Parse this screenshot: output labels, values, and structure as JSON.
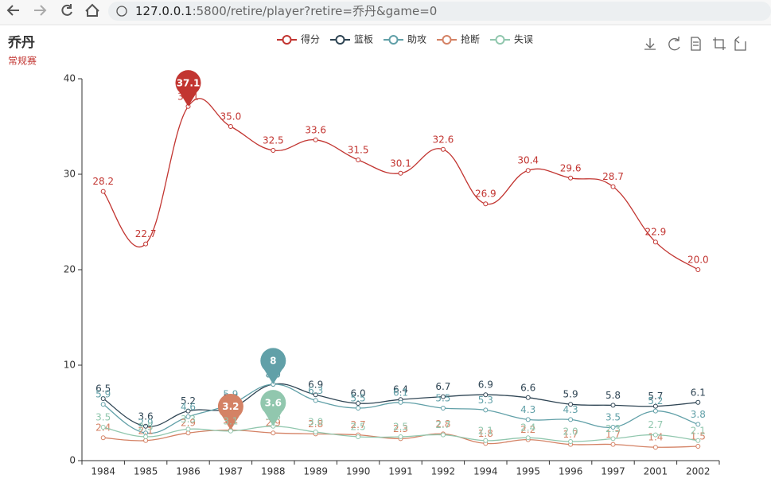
{
  "browser": {
    "url_host": "127.0.0.1",
    "url_rest": ":5800/retire/player?retire=乔丹&game=0"
  },
  "chart_data": {
    "type": "line",
    "title": "乔丹",
    "subtitle": "常规赛",
    "categories": [
      "1984",
      "1985",
      "1986",
      "1987",
      "1988",
      "1989",
      "1990",
      "1991",
      "1992",
      "1994",
      "1995",
      "1996",
      "1997",
      "2001",
      "2002"
    ],
    "ylim": [
      0,
      40
    ],
    "yticks": [
      0,
      10,
      20,
      30,
      40
    ],
    "smooth": true,
    "series": [
      {
        "name": "得分",
        "color": "#c23531",
        "values": [
          28.2,
          22.7,
          37.1,
          35.0,
          32.5,
          33.6,
          31.5,
          30.1,
          32.6,
          26.9,
          30.4,
          29.6,
          28.7,
          22.9,
          20.0
        ],
        "value_labels": [
          "28.2",
          "22.7",
          "37.1",
          "35.0",
          "32.5",
          "33.6",
          "31.5",
          "30.1",
          "32.6",
          "26.9",
          "30.4",
          "29.6",
          "28.7",
          "22.9",
          "20.0"
        ],
        "max_label": "37.1"
      },
      {
        "name": "篮板",
        "color": "#2f4554",
        "values": [
          6.5,
          3.6,
          5.2,
          5.5,
          8.0,
          6.9,
          6.0,
          6.4,
          6.7,
          6.9,
          6.6,
          5.9,
          5.8,
          5.7,
          6.1
        ],
        "value_labels": [
          "6.5",
          "3.6",
          "5.2",
          "5.5",
          "8.0",
          "6.9",
          "6.0",
          "6.4",
          "6.7",
          "6.9",
          "6.6",
          "5.9",
          "5.8",
          "5.7",
          "6.1"
        ]
      },
      {
        "name": "助攻",
        "color": "#61a0a8",
        "values": [
          5.9,
          2.9,
          4.6,
          5.9,
          8.0,
          6.3,
          5.5,
          6.1,
          5.5,
          5.3,
          4.3,
          4.3,
          3.5,
          5.2,
          3.8
        ],
        "value_labels": [
          "5.9",
          "2.9",
          "4.6",
          "5.9",
          "8.0",
          "6.3",
          "5.5",
          "6.1",
          "5.5",
          "5.3",
          "4.3",
          "4.3",
          "3.5",
          "5.2",
          "3.8"
        ],
        "max_label": "8"
      },
      {
        "name": "抢断",
        "color": "#d48265",
        "values": [
          2.4,
          2.1,
          2.9,
          3.2,
          2.9,
          2.8,
          2.7,
          2.3,
          2.8,
          1.8,
          2.2,
          1.7,
          1.7,
          1.4,
          1.5
        ],
        "value_labels": [
          "2.4",
          "2.1",
          "2.9",
          "3.2",
          "2.9",
          "2.8",
          "2.7",
          "2.3",
          "2.8",
          "1.8",
          "2.2",
          "1.7",
          "1.7",
          "1.4",
          "1.5"
        ],
        "max_label": "3.2"
      },
      {
        "name": "失误",
        "color": "#91c7ae",
        "values": [
          3.5,
          2.5,
          3.3,
          3.1,
          3.6,
          3.0,
          2.5,
          2.5,
          2.7,
          2.1,
          2.4,
          2.0,
          2.3,
          2.7,
          2.1
        ],
        "value_labels": [
          "3.5",
          "2.5",
          "3.3",
          "3.1",
          "3.6",
          "3.0",
          "2.5",
          "2.5",
          "2.7",
          "2.1",
          "2.4",
          "2.0",
          "2.3",
          "2.7",
          "2.1"
        ],
        "max_label": "3.6"
      }
    ]
  }
}
